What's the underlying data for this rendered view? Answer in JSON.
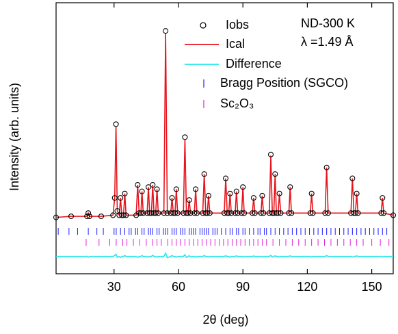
{
  "chart_data": {
    "type": "rietveld",
    "xlabel": "2θ (deg)",
    "ylabel": "Intensity (arb. units)",
    "annotations": [
      "ND-300 K",
      "λ =1.49 Å"
    ],
    "xlim": [
      3,
      160
    ],
    "xticks": [
      30,
      60,
      90,
      120,
      150
    ],
    "ylim": [
      -25,
      100
    ],
    "x": [
      3,
      10,
      17.4,
      18,
      18.6,
      24,
      29.5,
      30.3,
      30.9,
      31.5,
      32.4,
      33,
      33.6,
      34.4,
      35,
      35.6,
      40.3,
      41,
      41.7,
      42.5,
      43,
      43.6,
      45.4,
      46,
      46.6,
      47.4,
      48,
      48.6,
      49.4,
      50,
      50.6,
      53.2,
      54,
      54.8,
      56.4,
      57,
      57.6,
      58.4,
      59,
      59.6,
      62.3,
      63,
      63.7,
      64.4,
      65,
      65.6,
      67.4,
      68,
      68.6,
      71.3,
      72,
      72.7,
      73.4,
      74,
      74.6,
      81.3,
      82,
      82.7,
      83.4,
      84,
      84.6,
      86.4,
      87,
      87.6,
      89.4,
      90,
      90.6,
      94.4,
      95,
      95.6,
      98.4,
      99,
      99.6,
      102.3,
      103,
      103.7,
      104.4,
      105,
      105.6,
      106.4,
      107,
      107.6,
      111.4,
      112,
      112.6,
      121.4,
      122,
      122.6,
      128.3,
      129,
      129.7,
      140.3,
      141,
      141.7,
      142.4,
      143,
      143.6,
      154.4,
      155,
      155.6,
      160
    ],
    "series": [
      {
        "name": "Iobs",
        "color": "#000000",
        "style": "circles",
        "values": [
          1,
          1.5,
          1.5,
          3,
          1.5,
          1.5,
          2,
          10,
          44,
          4,
          2,
          10,
          2,
          2,
          12,
          2,
          2,
          16,
          3,
          3,
          13,
          3,
          3,
          15,
          3,
          3,
          16,
          3,
          3,
          14,
          3,
          3,
          87,
          3,
          3,
          10,
          3,
          3,
          14,
          3,
          3,
          38,
          3,
          3,
          9,
          3,
          3,
          14,
          3,
          3,
          21,
          3,
          3,
          11,
          3,
          3,
          19,
          3,
          3,
          12,
          3,
          3,
          13,
          3,
          3,
          15,
          3,
          3,
          10,
          3,
          3,
          11,
          3,
          3,
          30,
          3,
          3,
          21,
          3,
          3,
          12,
          3,
          3,
          15,
          3,
          3,
          12,
          3,
          3,
          24,
          3,
          3,
          19,
          3,
          3,
          12,
          3,
          3,
          10,
          3,
          2
        ]
      },
      {
        "name": "Ical",
        "color": "#e8141c",
        "style": "line",
        "values": [
          1,
          1.5,
          1.5,
          3,
          1.5,
          1.5,
          2,
          10,
          43,
          4,
          2,
          10,
          2,
          2,
          12,
          2,
          2,
          16,
          3,
          3,
          13,
          3,
          3,
          15,
          3,
          3,
          16,
          3,
          3,
          14,
          3,
          3,
          86,
          3,
          3,
          10,
          3,
          3,
          14,
          3,
          3,
          37,
          3,
          3,
          9,
          3,
          3,
          14,
          3,
          3,
          21,
          3,
          3,
          11,
          3,
          3,
          19,
          3,
          3,
          12,
          3,
          3,
          13,
          3,
          3,
          15,
          3,
          3,
          10,
          3,
          3,
          11,
          3,
          3,
          29.5,
          3,
          3,
          21,
          3,
          3,
          12,
          3,
          3,
          15,
          3,
          3,
          12,
          3,
          3,
          24,
          3,
          3,
          19,
          3,
          3,
          12,
          3,
          3,
          10,
          3,
          2
        ]
      },
      {
        "name": "Difference",
        "color": "#22e6ea",
        "style": "line",
        "values": [
          -17,
          -17,
          -17,
          -17.4,
          -17,
          -17,
          -17,
          -16.6,
          -16,
          -17.4,
          -17,
          -17.5,
          -17,
          -17,
          -16.6,
          -17,
          -17,
          -17.5,
          -17,
          -17,
          -16.6,
          -17,
          -17,
          -17.4,
          -17,
          -17,
          -16.5,
          -17,
          -17,
          -17.4,
          -17,
          -17,
          -15.5,
          -17.6,
          -17,
          -16.6,
          -17,
          -17,
          -17.4,
          -17,
          -17,
          -16.2,
          -17.5,
          -17,
          -16.7,
          -17,
          -17,
          -17.4,
          -17,
          -17,
          -16.6,
          -17,
          -17,
          -17.3,
          -17,
          -17,
          -16.7,
          -17,
          -17,
          -17.4,
          -17,
          -17,
          -16.7,
          -17,
          -17,
          -17.3,
          -17,
          -17,
          -16.8,
          -17,
          -17,
          -17.3,
          -17,
          -17,
          -16.5,
          -17.3,
          -17,
          -16.7,
          -17,
          -17,
          -17.3,
          -17,
          -17,
          -16.7,
          -17,
          -17,
          -17.3,
          -17,
          -17,
          -16.6,
          -17,
          -17,
          -17.3,
          -17,
          -17,
          -16.7,
          -17,
          -17,
          -17.3,
          -17,
          -17
        ]
      }
    ],
    "reflections": [
      {
        "name": "Bragg Position (SGCO)",
        "color": "#1a1aff",
        "x": [
          4,
          9,
          13,
          18,
          22,
          25,
          30,
          31,
          33,
          35,
          37,
          38,
          40,
          41,
          43,
          44,
          46,
          47,
          48,
          50,
          51,
          53,
          54,
          55,
          57,
          58,
          59,
          61,
          62,
          63,
          65,
          66,
          67,
          68,
          70,
          71,
          72,
          73,
          74,
          76,
          77,
          78,
          80,
          82,
          84,
          85,
          87,
          88,
          90,
          91,
          93,
          95,
          97,
          98,
          100,
          101,
          103,
          105,
          107,
          109,
          111,
          113,
          115,
          117,
          119,
          121,
          123,
          125,
          127,
          129,
          131,
          133,
          135,
          137,
          139,
          141,
          143,
          145,
          147,
          149,
          151,
          153,
          155,
          157
        ]
      },
      {
        "name": "Sc₂O₃",
        "color": "#e020e0",
        "x": [
          17,
          23,
          28,
          31,
          34,
          36,
          39,
          42,
          45,
          48,
          50,
          52,
          55,
          57,
          59,
          61,
          63,
          65,
          67,
          69,
          71,
          73,
          75,
          77,
          79,
          81,
          83,
          85,
          87,
          89,
          91,
          93,
          95,
          97,
          99,
          101,
          104,
          107,
          110,
          113,
          116,
          119,
          122,
          125,
          128,
          131,
          134,
          137,
          140,
          143,
          146,
          150,
          154,
          158
        ]
      }
    ]
  }
}
